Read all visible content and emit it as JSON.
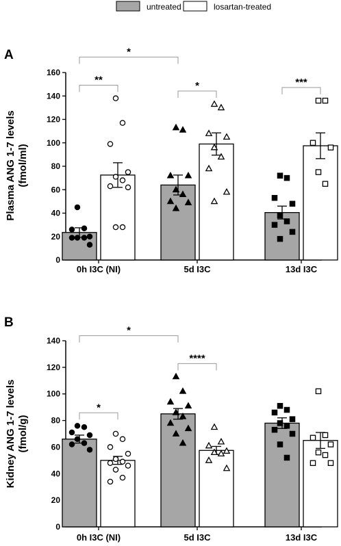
{
  "legend": {
    "entries": [
      {
        "label": "untreated",
        "fill": "#a6a6a6"
      },
      {
        "label": "losartan-treated",
        "fill": "#ffffff"
      }
    ]
  },
  "chart_data": [
    {
      "type": "bar",
      "panel": "A",
      "ylabel_lines": [
        "Plasma ANG 1-7 levels",
        "(fmol/ml)"
      ],
      "ylim": [
        0,
        160
      ],
      "yticks": [
        0,
        20,
        40,
        60,
        80,
        100,
        120,
        140,
        160
      ],
      "categories": [
        "0h I3C (NI)",
        "5d I3C",
        "13d I3C"
      ],
      "series": [
        {
          "name": "untreated",
          "fill": "#a6a6a6",
          "values": [
            23.5,
            64,
            40.5
          ],
          "errors": [
            4,
            8.5,
            5.5
          ],
          "points": [
            [
              45,
              27,
              26,
              20,
              19,
              19,
              19,
              13
            ],
            [
              113,
              111,
              72,
              72,
              60,
              56,
              50,
              49,
              44
            ],
            [
              72,
              70,
              53,
              48,
              38,
              33,
              30,
              24,
              18
            ]
          ],
          "markers": [
            "circle",
            "triangle",
            "square"
          ]
        },
        {
          "name": "losartan-treated",
          "fill": "#ffffff",
          "values": [
            72.5,
            99,
            97.5
          ],
          "errors": [
            10.5,
            9.5,
            11
          ],
          "points": [
            [
              138,
              117,
              99,
              75,
              71,
              68,
              63,
              62,
              28,
              28
            ],
            [
              133,
              130,
              108,
              105,
              96,
              88,
              78,
              58,
              50
            ],
            [
              136,
              136,
              100,
              96,
              75,
              65
            ]
          ],
          "markers": [
            "circle",
            "triangle",
            "square"
          ]
        }
      ],
      "significance": [
        {
          "from": [
            0,
            0
          ],
          "to": [
            0,
            1
          ],
          "label": "**"
        },
        {
          "from": [
            0,
            0
          ],
          "to": [
            1,
            0
          ],
          "label": "*"
        },
        {
          "from": [
            1,
            0
          ],
          "to": [
            1,
            1
          ],
          "label": "*"
        },
        {
          "from": [
            2,
            0
          ],
          "to": [
            2,
            1
          ],
          "label": "***"
        }
      ]
    },
    {
      "type": "bar",
      "panel": "B",
      "ylabel_lines": [
        "Kidney ANG 1-7 levels",
        "(fmol/g)"
      ],
      "ylim": [
        0,
        140
      ],
      "yticks": [
        0,
        20,
        40,
        60,
        80,
        100,
        120,
        140
      ],
      "categories": [
        "0h I3C (NI)",
        "5d I3C",
        "13d I3C"
      ],
      "series": [
        {
          "name": "untreated",
          "fill": "#a6a6a6",
          "values": [
            66,
            85,
            78
          ],
          "errors": [
            3,
            4,
            4
          ],
          "points": [
            [
              76,
              75,
              71,
              69,
              66,
              63,
              62,
              58
            ],
            [
              113,
              102,
              94,
              91,
              86,
              83,
              78,
              74,
              70,
              63
            ],
            [
              91,
              88,
              86,
              81,
              78,
              76,
              73,
              70,
              62,
              52
            ]
          ],
          "markers": [
            "circle",
            "triangle",
            "square"
          ]
        },
        {
          "name": "losartan-treated",
          "fill": "#ffffff",
          "values": [
            50,
            57.5,
            65
          ],
          "errors": [
            3,
            3,
            6
          ],
          "points": [
            [
              70,
              66,
              60,
              55,
              51,
              49,
              48,
              46,
              43,
              37,
              34
            ],
            [
              75,
              64,
              61,
              57,
              56,
              55,
              50,
              44
            ],
            [
              102,
              69,
              67,
              62,
              56,
              54,
              48,
              48
            ]
          ],
          "markers": [
            "circle",
            "triangle",
            "square"
          ]
        }
      ],
      "significance": [
        {
          "from": [
            0,
            0
          ],
          "to": [
            0,
            1
          ],
          "label": "*"
        },
        {
          "from": [
            0,
            0
          ],
          "to": [
            1,
            0
          ],
          "label": "*"
        },
        {
          "from": [
            1,
            0
          ],
          "to": [
            1,
            1
          ],
          "label": "****"
        }
      ]
    }
  ]
}
